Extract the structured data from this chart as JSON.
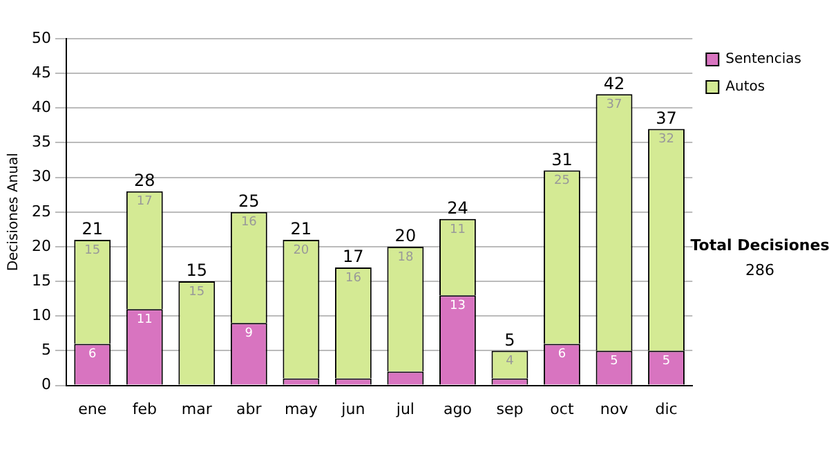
{
  "chart_data": {
    "type": "bar",
    "stacked": true,
    "ylabel": "Decisiones Anual",
    "categories": [
      "ene",
      "feb",
      "mar",
      "abr",
      "may",
      "jun",
      "jul",
      "ago",
      "sep",
      "oct",
      "nov",
      "dic"
    ],
    "series": [
      {
        "name": "Sentencias",
        "color": "#d874c0",
        "values": [
          6,
          11,
          0,
          9,
          1,
          1,
          2,
          13,
          1,
          6,
          5,
          5
        ],
        "value_labels": [
          "6",
          "11",
          null,
          "9",
          null,
          null,
          null,
          "13",
          null,
          "6",
          "5",
          "5"
        ]
      },
      {
        "name": "Autos",
        "color": "#d4ea94",
        "values": [
          15,
          17,
          15,
          16,
          20,
          16,
          18,
          11,
          4,
          25,
          37,
          32
        ],
        "value_labels": [
          "15",
          "17",
          "15",
          "16",
          "20",
          "16",
          "18",
          "11",
          "4",
          "25",
          "37",
          "32"
        ]
      }
    ],
    "totals": [
      "21",
      "28",
      "15",
      "25",
      "21",
      "17",
      "20",
      "24",
      "5",
      "31",
      "42",
      "37"
    ],
    "ylim": [
      0,
      50
    ],
    "yticks": [
      0,
      5,
      10,
      15,
      20,
      25,
      30,
      35,
      40,
      45,
      50
    ],
    "grid": "y",
    "legend": "right",
    "annotations": [
      "Total Decisiones",
      "286"
    ]
  }
}
